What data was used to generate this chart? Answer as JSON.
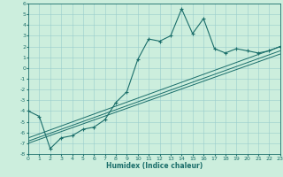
{
  "xlabel": "Humidex (Indice chaleur)",
  "ylabel": "",
  "bg_color": "#cceedd",
  "line_color": "#1a6e6a",
  "grid_color": "#99cccc",
  "xlim": [
    0,
    23
  ],
  "ylim": [
    -8,
    6
  ],
  "xticks": [
    0,
    1,
    2,
    3,
    4,
    5,
    6,
    7,
    8,
    9,
    10,
    11,
    12,
    13,
    14,
    15,
    16,
    17,
    18,
    19,
    20,
    21,
    22,
    23
  ],
  "yticks": [
    -8,
    -7,
    -6,
    -5,
    -4,
    -3,
    -2,
    -1,
    0,
    1,
    2,
    3,
    4,
    5,
    6
  ],
  "series1_x": [
    0,
    1,
    2,
    3,
    4,
    5,
    6,
    7,
    8,
    9,
    10,
    11,
    12,
    13,
    14,
    15,
    16,
    17,
    18,
    19,
    20,
    21,
    22,
    23
  ],
  "series1_y": [
    -4.0,
    -4.5,
    -7.5,
    -6.5,
    -6.3,
    -5.7,
    -5.5,
    -4.8,
    -3.2,
    -2.2,
    0.8,
    2.7,
    2.5,
    3.0,
    5.5,
    3.2,
    4.6,
    1.8,
    1.4,
    1.8,
    1.6,
    1.4,
    1.6,
    2.0
  ],
  "series2_x": [
    0,
    23
  ],
  "series2_y": [
    -6.5,
    2.0
  ],
  "series3_x": [
    0,
    23
  ],
  "series3_y": [
    -6.8,
    1.6
  ],
  "series4_x": [
    0,
    23
  ],
  "series4_y": [
    -7.0,
    1.3
  ]
}
